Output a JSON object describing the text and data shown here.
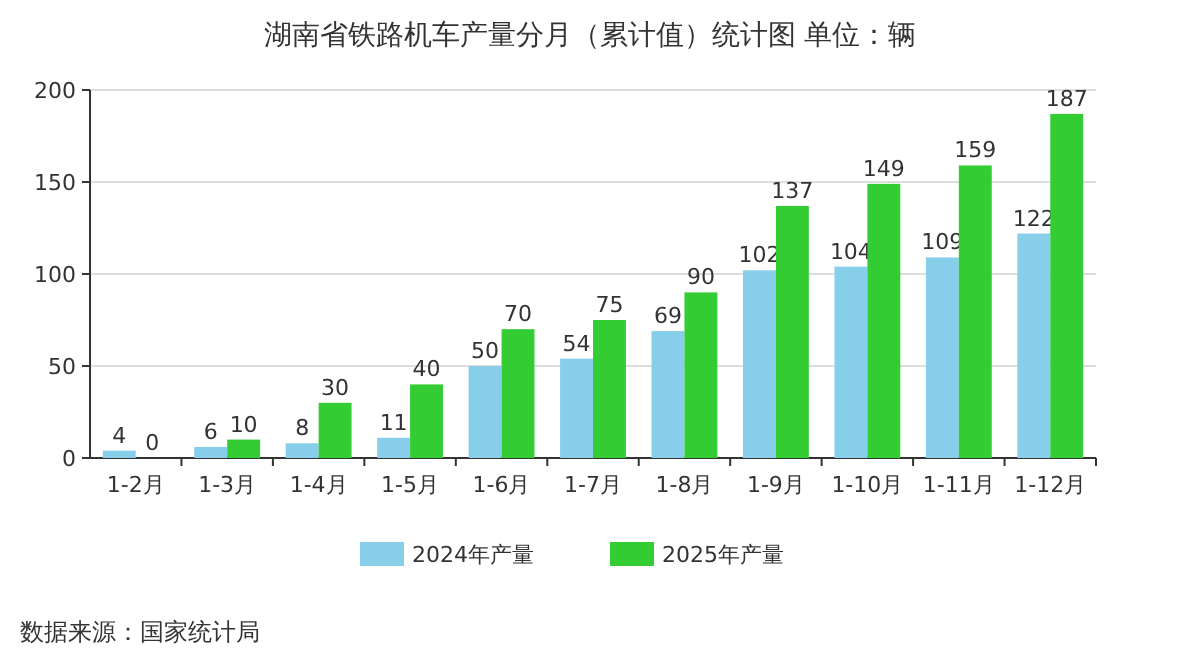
{
  "chart_data": {
    "type": "bar",
    "title": "湖南省铁路机车产量分月（累计值）统计图 单位：辆",
    "categories": [
      "1-2月",
      "1-3月",
      "1-4月",
      "1-5月",
      "1-6月",
      "1-7月",
      "1-8月",
      "1-9月",
      "1-10月",
      "1-11月",
      "1-12月"
    ],
    "series": [
      {
        "name": "2024年产量",
        "color": "#87ceeb",
        "values": [
          4,
          6,
          8,
          11,
          50,
          54,
          69,
          102,
          104,
          109,
          122
        ]
      },
      {
        "name": "2025年产量",
        "color": "#33cc33",
        "values": [
          0,
          10,
          30,
          40,
          70,
          75,
          90,
          137,
          149,
          159,
          187
        ]
      }
    ],
    "ylim": [
      0,
      200
    ],
    "yticks": [
      0,
      50,
      100,
      150,
      200
    ],
    "grid": "y",
    "legend": "bottom",
    "data_labels": true,
    "annotations": [
      "数据来源：国家统计局"
    ]
  }
}
